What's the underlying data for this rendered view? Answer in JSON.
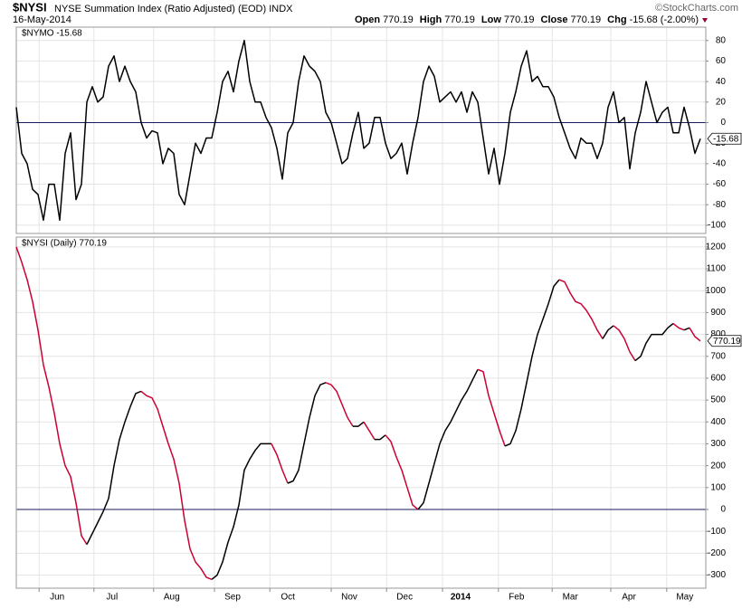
{
  "header": {
    "symbol": "$NYSI",
    "title": "NYSE Summation Index (Ratio Adjusted) (EOD) INDX",
    "date": "16-May-2014",
    "source": "©StockCharts.com",
    "quote": [
      {
        "label": "Open",
        "value": "770.19"
      },
      {
        "label": "High",
        "value": "770.19"
      },
      {
        "label": "Low",
        "value": "770.19"
      },
      {
        "label": "Close",
        "value": "770.19"
      },
      {
        "label": "Chg",
        "value": "-15.68 (-2.00%)"
      }
    ]
  },
  "chart_data": [
    {
      "type": "line",
      "label": "$NYMO -15.68",
      "xlim": [
        0,
        127
      ],
      "ylim": [
        -108,
        93
      ],
      "yticks": [
        80,
        60,
        40,
        20,
        0,
        -20,
        -40,
        -60,
        -80,
        -100
      ],
      "grid": true,
      "hline": 0,
      "series": [
        {
          "color": "#000000",
          "values": [
            15,
            -30,
            -40,
            -65,
            -70,
            -95,
            -60,
            -60,
            -95,
            -30,
            -10,
            -75,
            -60,
            20,
            35,
            20,
            25,
            55,
            65,
            40,
            55,
            40,
            30,
            0,
            -15,
            -8,
            -10,
            -40,
            -25,
            -30,
            -70,
            -80,
            -50,
            -20,
            -30,
            -15,
            -15,
            10,
            40,
            50,
            30,
            60,
            80,
            40,
            20,
            20,
            5,
            -5,
            -25,
            -55,
            -10,
            0,
            40,
            65,
            55,
            50,
            40,
            10,
            0,
            -20,
            -40,
            -35,
            -10,
            10,
            -25,
            -20,
            5,
            5,
            -20,
            -35,
            -30,
            -20,
            -50,
            -20,
            5,
            40,
            55,
            45,
            20,
            25,
            30,
            20,
            30,
            10,
            30,
            20,
            -15,
            -50,
            -25,
            -60,
            -30,
            10,
            30,
            55,
            70,
            40,
            45,
            35,
            35,
            25,
            5,
            -10,
            -25,
            -35,
            -15,
            -20,
            -20,
            -35,
            -20,
            15,
            30,
            0,
            5,
            -45,
            -10,
            10,
            40,
            20,
            0,
            10,
            15,
            -10,
            -10,
            15,
            -5,
            -30,
            -15.68
          ]
        }
      ]
    },
    {
      "type": "line",
      "label": "$NYSI (Daily) 770.19",
      "xlim": [
        0,
        127
      ],
      "ylim": [
        -360,
        1245
      ],
      "yticks": [
        1200,
        1100,
        1000,
        900,
        800,
        700,
        600,
        500,
        400,
        300,
        200,
        100,
        0,
        -100,
        -200,
        -300
      ],
      "grid": true,
      "hline": 0,
      "xticks": [
        {
          "value": 4.2,
          "label": "Jun"
        },
        {
          "value": 14.3,
          "label": "Jul"
        },
        {
          "value": 25.3,
          "label": "Aug"
        },
        {
          "value": 36.5,
          "label": "Sep"
        },
        {
          "value": 46.7,
          "label": "Oct"
        },
        {
          "value": 58,
          "label": "Nov"
        },
        {
          "value": 68.2,
          "label": "Dec"
        },
        {
          "value": 78.5,
          "label": "2014"
        },
        {
          "value": 88.8,
          "label": "Feb"
        },
        {
          "value": 98.7,
          "label": "Mar"
        },
        {
          "value": 109.5,
          "label": "Apr"
        },
        {
          "value": 119.8,
          "label": "May"
        }
      ],
      "series": [
        {
          "color": "#000000",
          "down_color": "#cc0033",
          "values": [
            1200,
            1130,
            1050,
            950,
            820,
            660,
            560,
            440,
            300,
            200,
            150,
            30,
            -120,
            -160,
            -110,
            -60,
            -10,
            50,
            200,
            320,
            400,
            470,
            530,
            540,
            520,
            510,
            460,
            380,
            300,
            230,
            120,
            -50,
            -180,
            -240,
            -270,
            -310,
            -320,
            -300,
            -240,
            -150,
            -80,
            20,
            180,
            230,
            270,
            300,
            300,
            300,
            250,
            180,
            120,
            130,
            180,
            300,
            420,
            520,
            570,
            580,
            570,
            540,
            480,
            420,
            380,
            380,
            400,
            360,
            320,
            320,
            340,
            310,
            240,
            180,
            100,
            20,
            0,
            30,
            120,
            210,
            300,
            360,
            400,
            450,
            500,
            540,
            590,
            640,
            630,
            520,
            440,
            360,
            290,
            300,
            360,
            460,
            580,
            700,
            800,
            870,
            940,
            1020,
            1050,
            1040,
            990,
            950,
            940,
            910,
            870,
            820,
            780,
            820,
            840,
            820,
            780,
            720,
            680,
            700,
            760,
            800,
            800,
            800,
            830,
            850,
            830,
            820,
            830,
            790,
            770.19
          ]
        }
      ]
    }
  ]
}
